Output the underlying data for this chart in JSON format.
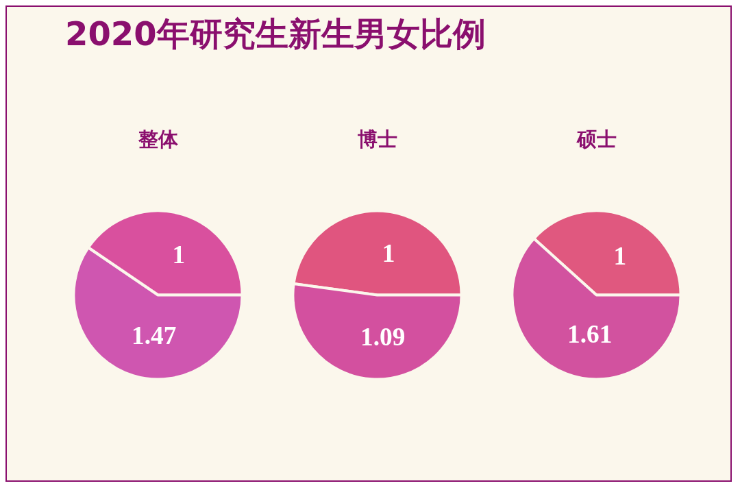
{
  "chart_data": [
    {
      "type": "pie",
      "title": "2020年研究生新生男女比例",
      "subtitle": "整体",
      "categories": [
        null,
        null
      ],
      "values": [
        1,
        1.47
      ],
      "colors": [
        "#d9509e",
        "#cf56b0"
      ],
      "data_labels": true
    },
    {
      "type": "pie",
      "subtitle": "博士",
      "categories": [
        null,
        null
      ],
      "values": [
        1,
        1.09
      ],
      "colors": [
        "#e0557f",
        "#d3509f"
      ],
      "data_labels": true
    },
    {
      "type": "pie",
      "subtitle": "硕士",
      "categories": [
        null,
        null
      ],
      "values": [
        1,
        1.61
      ],
      "colors": [
        "#e0587f",
        "#d2529f"
      ],
      "data_labels": true
    }
  ]
}
